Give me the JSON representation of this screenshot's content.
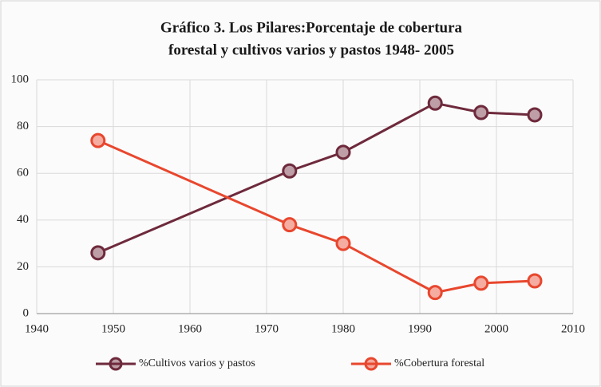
{
  "chart_data": {
    "type": "line",
    "title": [
      "Gráfico 3.  Los Pilares:Porcentaje de cobertura",
      "forestal y cultivos varios y pastos 1948- 2005"
    ],
    "x": [
      1948,
      1973,
      1980,
      1992,
      1998,
      2005
    ],
    "series": [
      {
        "name": "%Cultivos varios y pastos",
        "color": "#6e2a3c",
        "values": [
          26,
          61,
          69,
          90,
          86,
          85
        ]
      },
      {
        "name": "%Cobertura forestal",
        "color": "#e8472e",
        "values": [
          74,
          38,
          30,
          9,
          13,
          14
        ]
      }
    ],
    "xlim": [
      1940,
      2010
    ],
    "xticks": [
      1940,
      1950,
      1960,
      1970,
      1980,
      1990,
      2000,
      2010
    ],
    "ylim": [
      0,
      100
    ],
    "yticks": [
      0,
      20,
      40,
      60,
      80,
      100
    ],
    "grid": true,
    "legend": "bottom"
  }
}
